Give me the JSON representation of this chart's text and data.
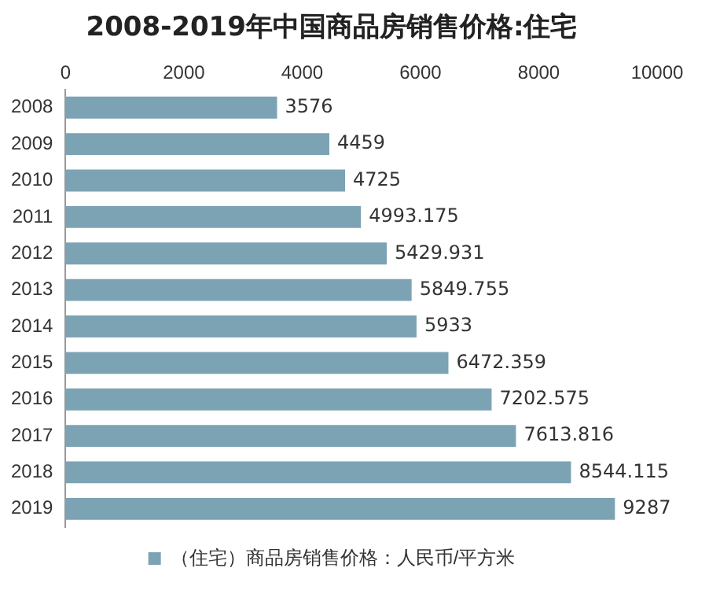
{
  "chart_data": {
    "type": "bar",
    "orientation": "horizontal",
    "title": "2008-2019年中国商品房销售价格:住宅",
    "categories": [
      "2008",
      "2009",
      "2010",
      "2011",
      "2012",
      "2013",
      "2014",
      "2015",
      "2016",
      "2017",
      "2018",
      "2019"
    ],
    "series": [
      {
        "name": "（住宅）商品房销售价格：人民币/平方米",
        "color": "#7ba3b4",
        "values": [
          3576,
          4459,
          4725,
          4993.175,
          5429.931,
          5849.755,
          5933,
          6472.359,
          7202.575,
          7613.816,
          8544.115,
          9287
        ]
      }
    ],
    "xlim": [
      0,
      10000
    ],
    "xticks": [
      0,
      2000,
      4000,
      6000,
      8000,
      10000
    ],
    "grid": false,
    "legend": "bottom",
    "data_labels": true
  }
}
